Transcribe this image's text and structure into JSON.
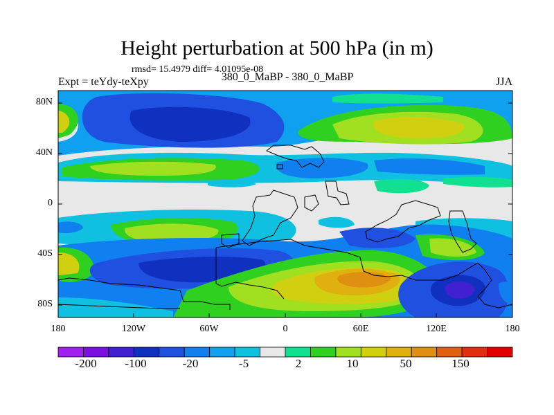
{
  "title": "Height perturbation at 500 hPa (in m)",
  "stats": "rmsd= 15.4979 diff= 4.01095e-08",
  "left_label": "Expt = teYdy-teXpy",
  "center_label": "380_0_MaBP - 380_0_MaBP",
  "right_label": "JJA",
  "lat_ticks": [
    "80N",
    "40N",
    "0",
    "40S",
    "80S"
  ],
  "lon_ticks": [
    "180",
    "120W",
    "60W",
    "0",
    "60E",
    "120E",
    "180"
  ],
  "colorbar": {
    "colors": [
      "#a020f0",
      "#7a10e0",
      "#4020d0",
      "#1030c0",
      "#2050e0",
      "#1080f0",
      "#10a0f0",
      "#10c0e0",
      "#e8e8e8",
      "#10e090",
      "#30d020",
      "#a0e020",
      "#d0d010",
      "#e0b010",
      "#e09010",
      "#e06010",
      "#e03010",
      "#e00000"
    ],
    "labels": [
      "-200",
      "-100",
      "-20",
      "-5",
      "2",
      "10",
      "50",
      "150"
    ]
  },
  "palette": {
    "neutral": "#e8e8e8",
    "lightblue": "#10c0e0",
    "blue": "#10a0f0",
    "medblue": "#1080f0",
    "darkblue": "#2050e0",
    "deepblue": "#1030c0",
    "teal": "#10e090",
    "green": "#30d020",
    "lime": "#a0e020",
    "yellow": "#d0d010",
    "gold": "#e0b010",
    "orange": "#e09010"
  }
}
